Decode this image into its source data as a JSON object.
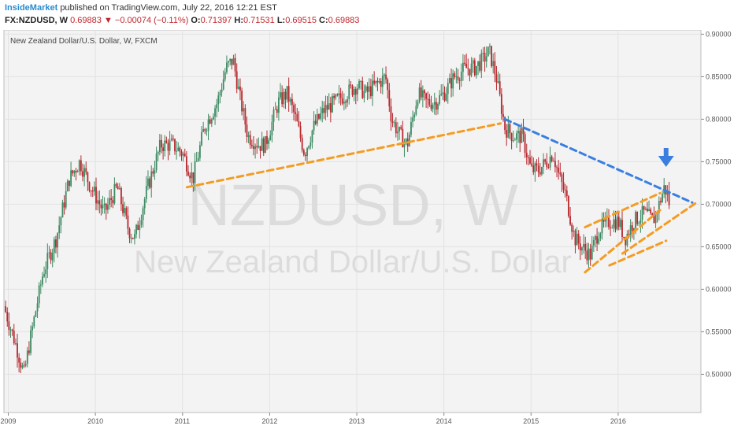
{
  "header": {
    "publisher": "InsideMarket",
    "published_text": "published on TradingView.com, July 22, 2016 12:21 EST",
    "symbol": "FX:NZDUSD, W",
    "last": "0.69883",
    "change": "−0.00074 (−0.11%)",
    "open_label": "O:",
    "open": "0.71397",
    "high_label": "H:",
    "high": "0.71531",
    "low_label": "L:",
    "low": "0.69515",
    "close_label": "C:",
    "close": "0.69883"
  },
  "chart_data": {
    "type": "candlestick",
    "title": "New Zealand Dollar/U.S. Dollar, W, FXCM",
    "watermark_symbol": "NZDUSD, W",
    "watermark_name": "New Zealand Dollar/U.S. Dollar",
    "x_ticks": [
      "2009",
      "2010",
      "2011",
      "2012",
      "2013",
      "2014",
      "2015",
      "2016"
    ],
    "y_ticks": [
      "0.90000",
      "0.85000",
      "0.80000",
      "0.75000",
      "0.70000",
      "0.65000",
      "0.60000",
      "0.55000",
      "0.50000"
    ],
    "ylim": [
      0.455,
      0.905
    ],
    "xlim": [
      2008.95,
      2016.95
    ],
    "colors": {
      "up": "#3d8a62",
      "down": "#b7282e",
      "orange": "#f39c24",
      "blue": "#3a7fe0"
    },
    "price_path": [
      [
        2008.95,
        0.58
      ],
      [
        2009.1,
        0.53
      ],
      [
        2009.18,
        0.5
      ],
      [
        2009.25,
        0.54
      ],
      [
        2009.4,
        0.62
      ],
      [
        2009.55,
        0.66
      ],
      [
        2009.7,
        0.73
      ],
      [
        2009.82,
        0.75
      ],
      [
        2009.95,
        0.72
      ],
      [
        2010.1,
        0.69
      ],
      [
        2010.25,
        0.72
      ],
      [
        2010.38,
        0.67
      ],
      [
        2010.45,
        0.66
      ],
      [
        2010.6,
        0.72
      ],
      [
        2010.75,
        0.77
      ],
      [
        2010.88,
        0.77
      ],
      [
        2011.0,
        0.76
      ],
      [
        2011.12,
        0.73
      ],
      [
        2011.25,
        0.79
      ],
      [
        2011.4,
        0.82
      ],
      [
        2011.5,
        0.86
      ],
      [
        2011.58,
        0.87
      ],
      [
        2011.65,
        0.83
      ],
      [
        2011.75,
        0.78
      ],
      [
        2011.88,
        0.77
      ],
      [
        2011.95,
        0.77
      ],
      [
        2012.1,
        0.82
      ],
      [
        2012.2,
        0.83
      ],
      [
        2012.3,
        0.8
      ],
      [
        2012.4,
        0.76
      ],
      [
        2012.5,
        0.79
      ],
      [
        2012.62,
        0.81
      ],
      [
        2012.75,
        0.82
      ],
      [
        2012.88,
        0.83
      ],
      [
        2013.0,
        0.84
      ],
      [
        2013.1,
        0.83
      ],
      [
        2013.22,
        0.84
      ],
      [
        2013.33,
        0.85
      ],
      [
        2013.4,
        0.8
      ],
      [
        2013.5,
        0.78
      ],
      [
        2013.58,
        0.77
      ],
      [
        2013.7,
        0.83
      ],
      [
        2013.8,
        0.82
      ],
      [
        2013.9,
        0.82
      ],
      [
        2014.0,
        0.83
      ],
      [
        2014.12,
        0.85
      ],
      [
        2014.25,
        0.86
      ],
      [
        2014.35,
        0.86
      ],
      [
        2014.45,
        0.87
      ],
      [
        2014.52,
        0.88
      ],
      [
        2014.6,
        0.85
      ],
      [
        2014.7,
        0.79
      ],
      [
        2014.8,
        0.78
      ],
      [
        2014.9,
        0.78
      ],
      [
        2015.0,
        0.74
      ],
      [
        2015.08,
        0.74
      ],
      [
        2015.18,
        0.75
      ],
      [
        2015.25,
        0.76
      ],
      [
        2015.33,
        0.73
      ],
      [
        2015.4,
        0.71
      ],
      [
        2015.5,
        0.66
      ],
      [
        2015.58,
        0.65
      ],
      [
        2015.68,
        0.64
      ],
      [
        2015.78,
        0.67
      ],
      [
        2015.9,
        0.68
      ],
      [
        2016.0,
        0.68
      ],
      [
        2016.08,
        0.66
      ],
      [
        2016.18,
        0.68
      ],
      [
        2016.3,
        0.69
      ],
      [
        2016.4,
        0.68
      ],
      [
        2016.47,
        0.7
      ],
      [
        2016.53,
        0.72
      ],
      [
        2016.57,
        0.71
      ],
      [
        2016.6,
        0.699
      ]
    ],
    "last_price": 0.69883,
    "trendlines": [
      {
        "color": "orange",
        "points": [
          [
            2011.05,
            0.72
          ],
          [
            2014.65,
            0.795
          ]
        ]
      },
      {
        "color": "blue",
        "points": [
          [
            2014.7,
            0.8
          ],
          [
            2016.85,
            0.702
          ]
        ]
      },
      {
        "color": "orange",
        "points": [
          [
            2015.62,
            0.673
          ],
          [
            2016.48,
            0.713
          ]
        ]
      },
      {
        "color": "orange",
        "points": [
          [
            2015.62,
            0.62
          ],
          [
            2016.48,
            0.693
          ]
        ]
      },
      {
        "color": "orange",
        "points": [
          [
            2016.05,
            0.642
          ],
          [
            2016.9,
            0.702
          ]
        ]
      },
      {
        "color": "orange",
        "points": [
          [
            2015.9,
            0.628
          ],
          [
            2016.55,
            0.657
          ]
        ]
      }
    ],
    "arrow": {
      "x": 2016.55,
      "y": 0.755,
      "direction": "down",
      "color": "blue"
    }
  }
}
